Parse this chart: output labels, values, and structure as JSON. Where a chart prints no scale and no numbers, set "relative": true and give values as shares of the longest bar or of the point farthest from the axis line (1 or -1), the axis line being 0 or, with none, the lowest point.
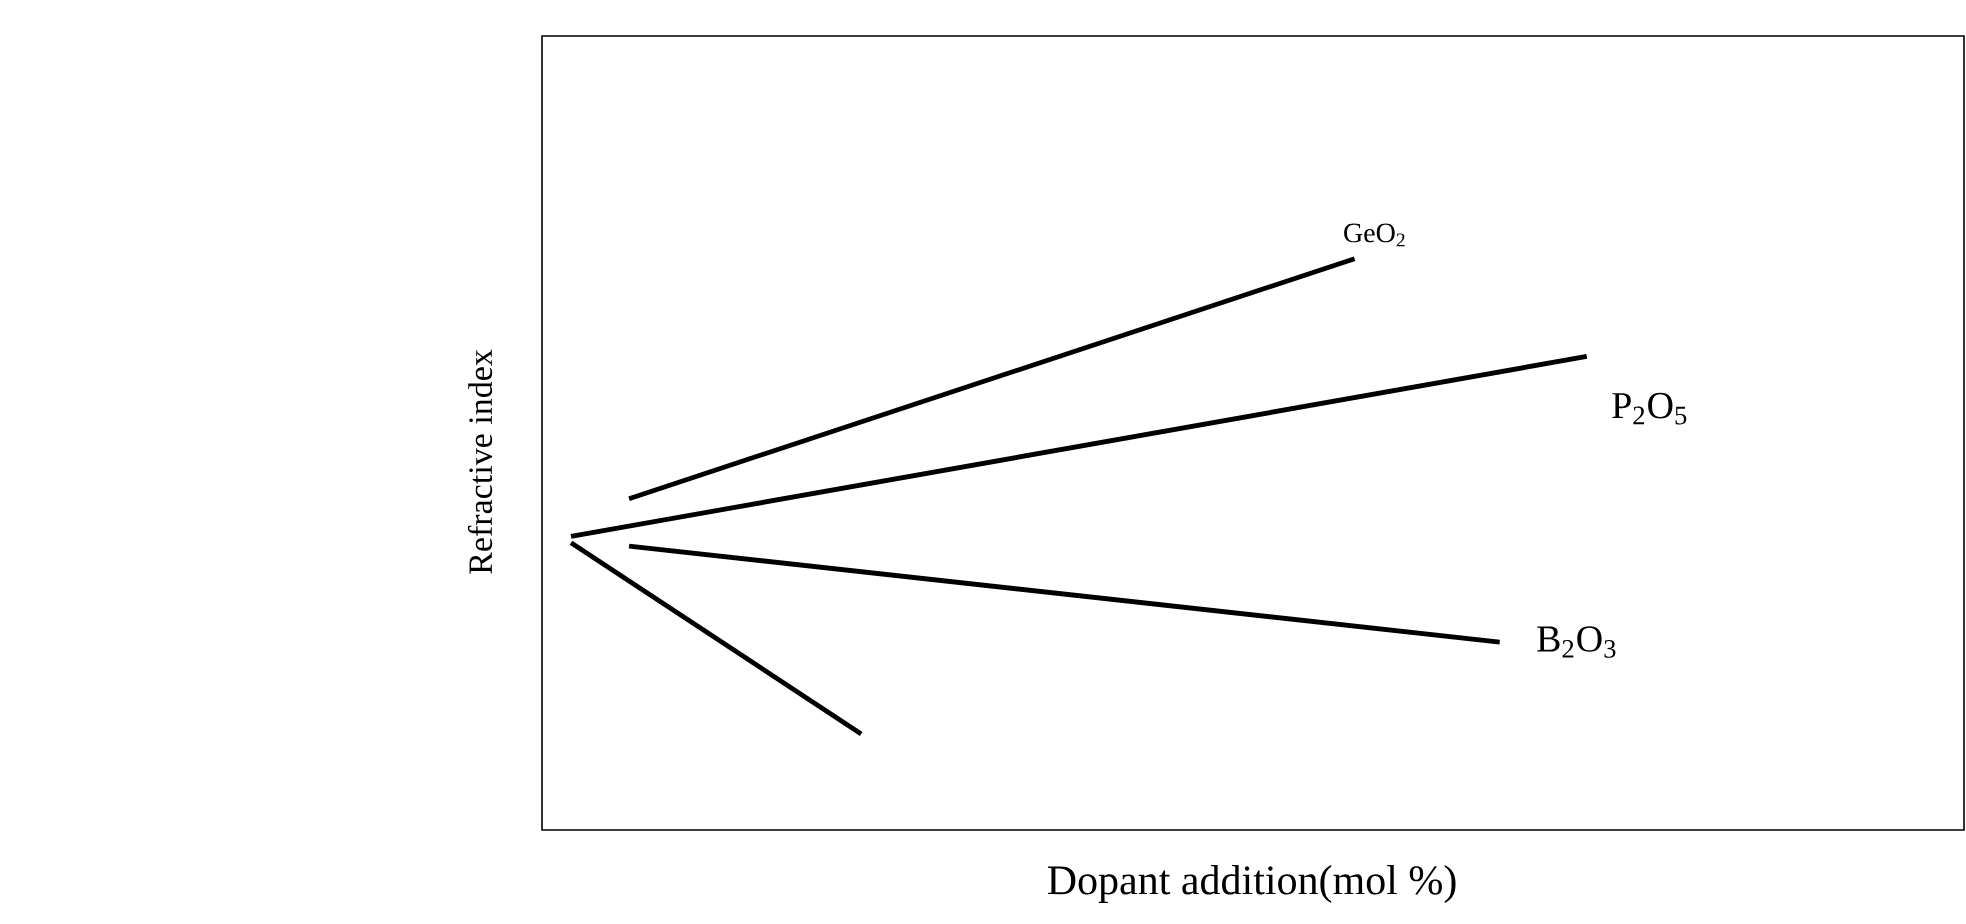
{
  "chart_data": {
    "type": "line",
    "relative": true,
    "xlabel": "Dopant addition(mol %)",
    "ylabel": "Refractive index",
    "categories": [
      null,
      null,
      null,
      null,
      null,
      null,
      null,
      null,
      null,
      null,
      null,
      null,
      null,
      null,
      null,
      null,
      null,
      null,
      null,
      null,
      null,
      null,
      null,
      null,
      null,
      null,
      null,
      null,
      null,
      null,
      null,
      null,
      null,
      null,
      null,
      null,
      null,
      null,
      null,
      null,
      null,
      null,
      null,
      null,
      null,
      null,
      null,
      null,
      null,
      null
    ],
    "series": [
      {
        "name": "GeO$_{2}$",
        "color": "#000000",
        "values": [
          null,
          null,
          null,
          0.58,
          null,
          null,
          null,
          null,
          null,
          null,
          null,
          null,
          null,
          null,
          null,
          null,
          null,
          null,
          null,
          null,
          null,
          null,
          null,
          null,
          null,
          null,
          null,
          null,
          1,
          null,
          null,
          null,
          null,
          null,
          null,
          null,
          null,
          null,
          null,
          null,
          null,
          null,
          null,
          null,
          null,
          null,
          null,
          null,
          null,
          null
        ]
      },
      {
        "name": "P$_{2}$O$_{5}$",
        "color": "#000000",
        "values": [
          null,
          0.514,
          null,
          null,
          null,
          null,
          null,
          null,
          null,
          null,
          null,
          null,
          null,
          null,
          null,
          null,
          null,
          null,
          null,
          null,
          null,
          null,
          null,
          null,
          null,
          null,
          null,
          null,
          null,
          null,
          null,
          null,
          null,
          null,
          null,
          null,
          0.829,
          null,
          null,
          null,
          null,
          null,
          null,
          null,
          null,
          null,
          null,
          null,
          null,
          null
        ]
      },
      {
        "name": "B$_{2}$O$_{3}$",
        "color": "#000000",
        "values": [
          null,
          null,
          null,
          0.497,
          null,
          null,
          null,
          null,
          null,
          null,
          null,
          null,
          null,
          null,
          null,
          null,
          null,
          null,
          null,
          null,
          null,
          null,
          null,
          null,
          null,
          null,
          null,
          null,
          null,
          null,
          null,
          null,
          null,
          0.329,
          null,
          null,
          null,
          null,
          null,
          null,
          null,
          null,
          null,
          null,
          null,
          null,
          null,
          null,
          null,
          null
        ]
      },
      {
        "color": "#000000",
        "values": [
          null,
          0.503,
          null,
          null,
          null,
          null,
          null,
          null,
          null,
          null,
          null,
          0.168,
          null,
          null,
          null,
          null,
          null,
          null,
          null,
          null,
          null,
          null,
          null,
          null,
          null,
          null,
          null,
          null,
          null,
          null,
          null,
          null,
          null,
          null,
          null,
          null,
          null,
          null,
          null,
          null,
          null,
          null,
          null,
          null,
          null,
          null,
          null,
          null,
          null,
          null
        ]
      }
    ]
  }
}
